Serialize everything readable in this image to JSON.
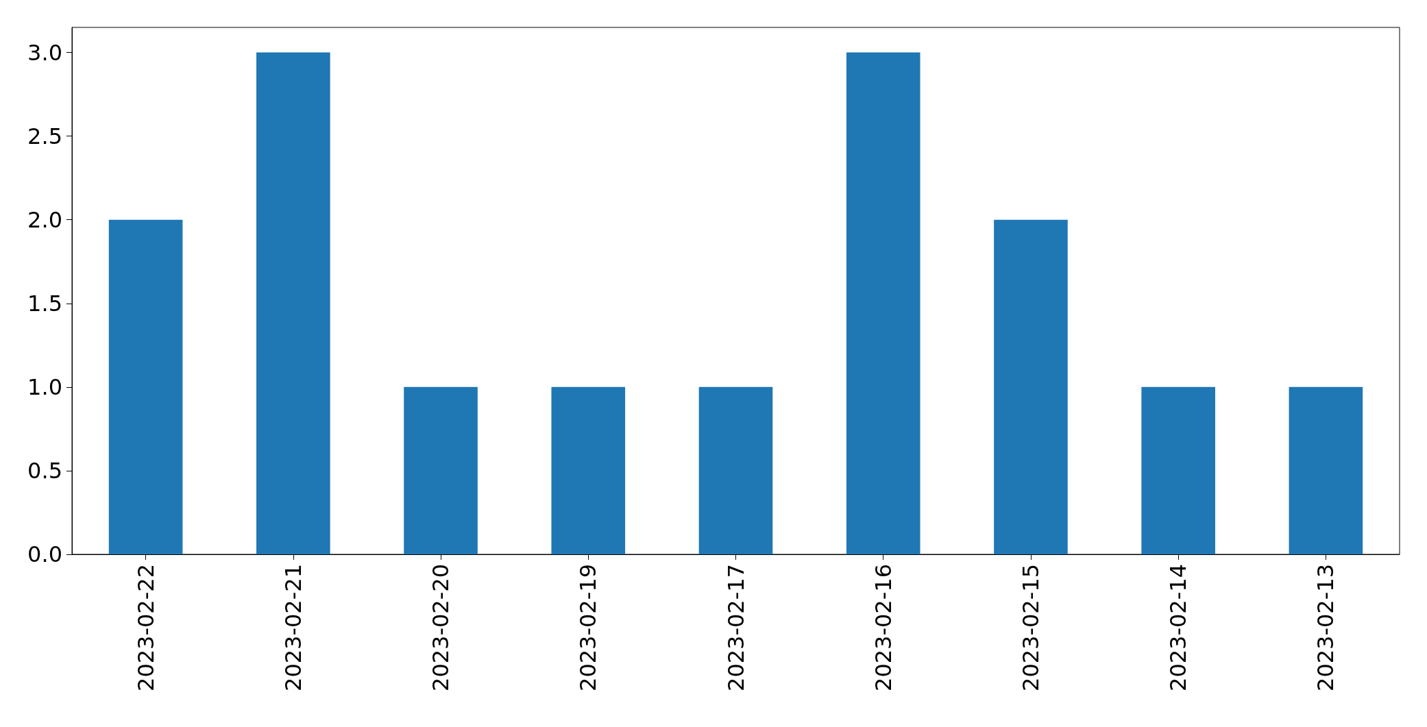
{
  "chart_data": {
    "type": "bar",
    "categories": [
      "2023-02-22",
      "2023-02-21",
      "2023-02-20",
      "2023-02-19",
      "2023-02-17",
      "2023-02-16",
      "2023-02-15",
      "2023-02-14",
      "2023-02-13"
    ],
    "values": [
      2,
      3,
      1,
      1,
      1,
      3,
      2,
      1,
      1
    ],
    "color": "#1f77b4",
    "ylim": [
      0,
      3.15
    ],
    "yticks": [
      {
        "value": 0,
        "label": "0.0"
      },
      {
        "value": 0.5,
        "label": "0.5"
      },
      {
        "value": 1,
        "label": "1.0"
      },
      {
        "value": 1.5,
        "label": "1.5"
      },
      {
        "value": 2,
        "label": "2.0"
      },
      {
        "value": 2.5,
        "label": "2.5"
      },
      {
        "value": 3,
        "label": "3.0"
      }
    ],
    "grid": false
  }
}
